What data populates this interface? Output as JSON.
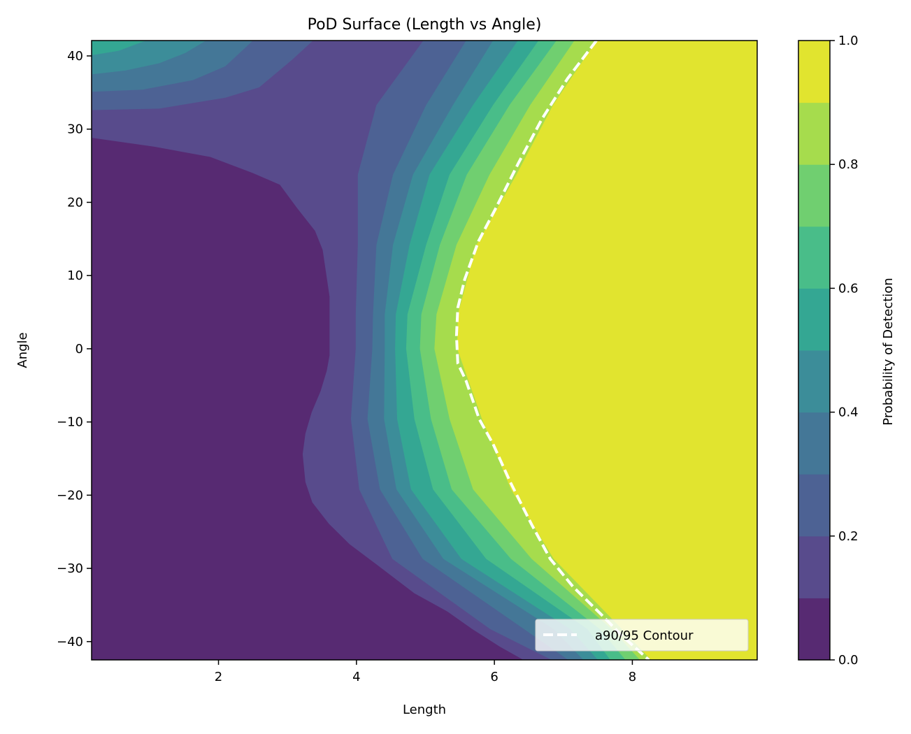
{
  "chart_data": {
    "type": "contourf",
    "title": "PoD Surface (Length vs Angle)",
    "xlabel": "Length",
    "ylabel": "Angle",
    "xlim": [
      0.16,
      9.81
    ],
    "ylim": [
      -42.5,
      42.1
    ],
    "xticks": [
      {
        "v": 2,
        "label": "2"
      },
      {
        "v": 4,
        "label": "4"
      },
      {
        "v": 6,
        "label": "6"
      },
      {
        "v": 8,
        "label": "8"
      }
    ],
    "yticks": [
      {
        "v": 40,
        "label": "40"
      },
      {
        "v": 30,
        "label": "30"
      },
      {
        "v": 20,
        "label": "20"
      },
      {
        "v": 10,
        "label": "10"
      },
      {
        "v": 0,
        "label": "0"
      },
      {
        "v": -10,
        "label": "−10"
      },
      {
        "v": -20,
        "label": "−20"
      },
      {
        "v": -30,
        "label": "−30"
      },
      {
        "v": -40,
        "label": "−40"
      }
    ],
    "levels": [
      0.0,
      0.1,
      0.2,
      0.3,
      0.4,
      0.5,
      0.6,
      0.7,
      0.8,
      0.9,
      1.0
    ],
    "band_colors": [
      "#572a72",
      "#584b8c",
      "#4d6294",
      "#447797",
      "#3c8d99",
      "#34a793",
      "#49bd89",
      "#70cf70",
      "#a6dc4d",
      "#e1e42f"
    ],
    "level_0_1_boundary": {
      "L": [
        0.17,
        1.07,
        1.88,
        2.5,
        2.89,
        3.14,
        3.4,
        3.51,
        3.61,
        3.61,
        3.57,
        3.48,
        3.35,
        3.26,
        3.22,
        3.26,
        3.36,
        3.6,
        3.9,
        4.31,
        4.84,
        5.32,
        5.68,
        6.08,
        6.42
      ],
      "A": [
        28.8,
        27.6,
        26.2,
        24.0,
        22.4,
        19.2,
        16.1,
        13.5,
        7.1,
        -0.9,
        -3.0,
        -5.8,
        -8.7,
        -11.6,
        -14.4,
        -18.2,
        -21.0,
        -23.9,
        -26.7,
        -29.6,
        -33.4,
        -35.9,
        -38.3,
        -40.7,
        -42.5
      ]
    },
    "main_boundary_angles": [
      42.1,
      33.3,
      23.8,
      14.2,
      4.7,
      0.0,
      -9.6,
      -19.2,
      -28.7,
      -38.3,
      -42.5
    ],
    "main_boundaries": [
      {
        "level": 0.2,
        "L": [
          4.97,
          4.29,
          4.02,
          4.02,
          3.99,
          3.99,
          3.92,
          4.04,
          4.52,
          5.94,
          6.83
        ]
      },
      {
        "level": 0.3,
        "L": [
          5.59,
          5.01,
          4.53,
          4.29,
          4.24,
          4.23,
          4.16,
          4.34,
          4.96,
          6.43,
          7.07
        ]
      },
      {
        "level": 0.4,
        "L": [
          5.98,
          5.4,
          4.82,
          4.53,
          4.41,
          4.41,
          4.4,
          4.58,
          5.26,
          6.86,
          7.29
        ]
      },
      {
        "level": 0.5,
        "L": [
          6.34,
          5.69,
          5.06,
          4.77,
          4.57,
          4.56,
          4.59,
          4.79,
          5.52,
          7.1,
          7.5
        ]
      },
      {
        "level": 0.6,
        "L": [
          6.64,
          5.98,
          5.35,
          5.01,
          4.74,
          4.72,
          4.84,
          5.11,
          5.88,
          7.35,
          7.68
        ]
      },
      {
        "level": 0.7,
        "L": [
          6.9,
          6.22,
          5.6,
          5.21,
          4.94,
          4.92,
          5.08,
          5.38,
          6.24,
          7.53,
          7.9
        ]
      },
      {
        "level": 0.8,
        "L": [
          7.16,
          6.52,
          5.93,
          5.45,
          5.16,
          5.13,
          5.35,
          5.69,
          6.54,
          7.7,
          8.11
        ]
      },
      {
        "level": 0.9,
        "L": [
          7.48,
          6.85,
          6.32,
          5.74,
          5.47,
          5.46,
          5.82,
          6.24,
          6.86,
          7.85,
          8.27
        ]
      }
    ],
    "corner_boundaries": [
      {
        "level": 0.2,
        "L": [
          0.17,
          1.14,
          2.1,
          2.59,
          3.07,
          3.37
        ],
        "A": [
          32.6,
          32.8,
          34.3,
          35.7,
          39.5,
          42.1
        ]
      },
      {
        "level": 0.3,
        "L": [
          0.17,
          0.9,
          1.63,
          2.1,
          2.5
        ],
        "A": [
          35.1,
          35.4,
          36.7,
          38.6,
          42.1
        ]
      },
      {
        "level": 0.4,
        "L": [
          0.17,
          0.65,
          1.14,
          1.52,
          1.82
        ],
        "A": [
          37.5,
          38.0,
          39.0,
          40.4,
          42.1
        ]
      },
      {
        "level": 0.5,
        "L": [
          0.17,
          0.55,
          0.95
        ],
        "A": [
          40.1,
          40.7,
          42.1
        ]
      }
    ],
    "a90_95_contour": {
      "L": [
        7.48,
        7.06,
        6.69,
        6.35,
        6.01,
        5.77,
        5.57,
        5.47,
        5.45,
        5.47,
        5.59,
        5.78,
        5.98,
        6.23,
        6.54,
        6.81,
        7.14,
        7.55,
        7.85,
        8.24
      ],
      "A": [
        42.1,
        36.9,
        31.4,
        25.4,
        19.0,
        14.7,
        9.5,
        5.6,
        1.8,
        -2.0,
        -4.4,
        -9.6,
        -13.0,
        -18.2,
        -24.0,
        -28.7,
        -32.5,
        -36.3,
        -39.2,
        -42.5
      ]
    },
    "legend": {
      "label": "a90/95 Contour",
      "placement": "lower-right"
    },
    "colorbar": {
      "label": "Probability of Detection",
      "range": [
        0,
        1
      ],
      "ticks": [
        {
          "v": 0.0,
          "label": "0.0"
        },
        {
          "v": 0.2,
          "label": "0.2"
        },
        {
          "v": 0.4,
          "label": "0.4"
        },
        {
          "v": 0.6,
          "label": "0.6"
        },
        {
          "v": 0.8,
          "label": "0.8"
        },
        {
          "v": 1.0,
          "label": "1.0"
        }
      ]
    }
  }
}
